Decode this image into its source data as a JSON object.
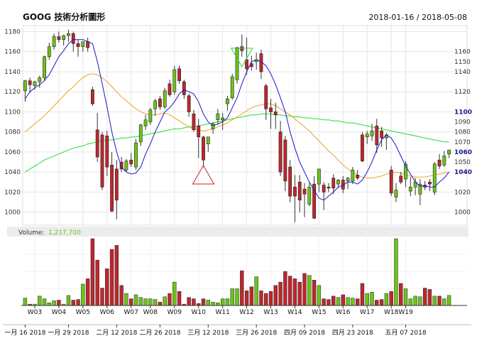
{
  "chart_data": {
    "type": "candlestick",
    "title": "GOOG 技術分析圖形",
    "date_range": "2018-01-16 / 2018-05-08",
    "y_ticks_left": [
      1000,
      1020,
      1040,
      1060,
      1080,
      1100,
      1120,
      1140,
      1160,
      1180
    ],
    "ylim": [
      987,
      1186
    ],
    "y_ticks_right": [
      {
        "label": "1160",
        "v": 1160,
        "bold": false
      },
      {
        "label": "1150",
        "v": 1150,
        "bold": false
      },
      {
        "label": "1140",
        "v": 1140,
        "bold": false
      },
      {
        "label": "1120",
        "v": 1120,
        "bold": false
      },
      {
        "label": "1100",
        "v": 1100,
        "bold": true
      },
      {
        "label": "1090",
        "v": 1090,
        "bold": false
      },
      {
        "label": "1080",
        "v": 1080,
        "bold": false
      },
      {
        "label": "1070",
        "v": 1070,
        "bold": false
      },
      {
        "label": "1060",
        "v": 1060,
        "bold": true
      },
      {
        "label": "1050",
        "v": 1050,
        "bold": false
      },
      {
        "label": "1040",
        "v": 1040,
        "bold": true
      },
      {
        "label": "1020",
        "v": 1020,
        "bold": false
      },
      {
        "label": "1000",
        "v": 1000,
        "bold": false
      }
    ],
    "colors": {
      "up": "#6cc417",
      "down": "#c0262d",
      "ma5": "#1a16c8",
      "ma20": "#f0a020",
      "ma60": "#22dd33",
      "grid": "#e6e6e6",
      "volume_label": "#6cc417"
    },
    "candles": [
      {
        "o": 1121,
        "h": 1132,
        "l": 1110,
        "c": 1131
      },
      {
        "o": 1131,
        "h": 1134,
        "l": 1119,
        "c": 1127
      },
      {
        "o": 1126,
        "h": 1131,
        "l": 1122,
        "c": 1130
      },
      {
        "o": 1130,
        "h": 1136,
        "l": 1124,
        "c": 1134
      },
      {
        "o": 1134,
        "h": 1156,
        "l": 1131,
        "c": 1155
      },
      {
        "o": 1155,
        "h": 1169,
        "l": 1152,
        "c": 1165
      },
      {
        "o": 1165,
        "h": 1178,
        "l": 1162,
        "c": 1175
      },
      {
        "o": 1175,
        "h": 1180,
        "l": 1169,
        "c": 1172
      },
      {
        "o": 1172,
        "h": 1177,
        "l": 1166,
        "c": 1176
      },
      {
        "o": 1176,
        "h": 1182,
        "l": 1170,
        "c": 1178
      },
      {
        "o": 1178,
        "h": 1180,
        "l": 1160,
        "c": 1168
      },
      {
        "o": 1168,
        "h": 1172,
        "l": 1155,
        "c": 1165
      },
      {
        "o": 1165,
        "h": 1170,
        "l": 1160,
        "c": 1170
      },
      {
        "o": 1170,
        "h": 1174,
        "l": 1160,
        "c": 1164
      },
      {
        "o": 1122,
        "h": 1125,
        "l": 1106,
        "c": 1108
      },
      {
        "o": 1082,
        "h": 1099,
        "l": 1050,
        "c": 1055
      },
      {
        "o": 1077,
        "h": 1080,
        "l": 1022,
        "c": 1025
      },
      {
        "o": 1076,
        "h": 1081,
        "l": 1036,
        "c": 1045
      },
      {
        "o": 1047,
        "h": 1060,
        "l": 1000,
        "c": 1001
      },
      {
        "o": 1043,
        "h": 1052,
        "l": 993,
        "c": 1012
      },
      {
        "o": 1050,
        "h": 1055,
        "l": 1040,
        "c": 1043
      },
      {
        "o": 1042,
        "h": 1053,
        "l": 1040,
        "c": 1051
      },
      {
        "o": 1052,
        "h": 1059,
        "l": 1045,
        "c": 1048
      },
      {
        "o": 1045,
        "h": 1073,
        "l": 1042,
        "c": 1069
      },
      {
        "o": 1070,
        "h": 1088,
        "l": 1066,
        "c": 1087
      },
      {
        "o": 1086,
        "h": 1097,
        "l": 1082,
        "c": 1092
      },
      {
        "o": 1090,
        "h": 1104,
        "l": 1087,
        "c": 1102
      },
      {
        "o": 1103,
        "h": 1113,
        "l": 1096,
        "c": 1111
      },
      {
        "o": 1113,
        "h": 1116,
        "l": 1102,
        "c": 1105
      },
      {
        "o": 1105,
        "h": 1124,
        "l": 1103,
        "c": 1121
      },
      {
        "o": 1128,
        "h": 1132,
        "l": 1115,
        "c": 1117
      },
      {
        "o": 1120,
        "h": 1146,
        "l": 1117,
        "c": 1142
      },
      {
        "o": 1143,
        "h": 1146,
        "l": 1128,
        "c": 1131
      },
      {
        "o": 1130,
        "h": 1132,
        "l": 1113,
        "c": 1117
      },
      {
        "o": 1116,
        "h": 1118,
        "l": 1095,
        "c": 1100
      },
      {
        "o": 1098,
        "h": 1102,
        "l": 1080,
        "c": 1082
      },
      {
        "o": 1086,
        "h": 1093,
        "l": 1054,
        "c": 1075
      },
      {
        "o": 1075,
        "h": 1076,
        "l": 1045,
        "c": 1052
      },
      {
        "o": 1068,
        "h": 1075,
        "l": 1060,
        "c": 1075
      },
      {
        "o": 1083,
        "h": 1090,
        "l": 1078,
        "c": 1088
      },
      {
        "o": 1092,
        "h": 1103,
        "l": 1087,
        "c": 1098
      },
      {
        "o": 1092,
        "h": 1099,
        "l": 1082,
        "c": 1094
      },
      {
        "o": 1108,
        "h": 1116,
        "l": 1101,
        "c": 1113
      },
      {
        "o": 1114,
        "h": 1138,
        "l": 1112,
        "c": 1135
      },
      {
        "o": 1132,
        "h": 1165,
        "l": 1128,
        "c": 1164
      },
      {
        "o": 1165,
        "h": 1177,
        "l": 1155,
        "c": 1161
      },
      {
        "o": 1152,
        "h": 1174,
        "l": 1137,
        "c": 1143
      },
      {
        "o": 1148,
        "h": 1156,
        "l": 1141,
        "c": 1145
      },
      {
        "o": 1150,
        "h": 1159,
        "l": 1142,
        "c": 1152
      },
      {
        "o": 1158,
        "h": 1162,
        "l": 1133,
        "c": 1140
      },
      {
        "o": 1126,
        "h": 1128,
        "l": 1092,
        "c": 1103
      },
      {
        "o": 1104,
        "h": 1113,
        "l": 1083,
        "c": 1100
      },
      {
        "o": 1100,
        "h": 1109,
        "l": 1083,
        "c": 1097
      },
      {
        "o": 1080,
        "h": 1091,
        "l": 1036,
        "c": 1040
      },
      {
        "o": 1072,
        "h": 1076,
        "l": 1021,
        "c": 1031
      },
      {
        "o": 1045,
        "h": 1052,
        "l": 1010,
        "c": 1016
      },
      {
        "o": 1025,
        "h": 1037,
        "l": 990,
        "c": 1016
      },
      {
        "o": 1030,
        "h": 1037,
        "l": 1000,
        "c": 1012
      },
      {
        "o": 1023,
        "h": 1029,
        "l": 995,
        "c": 1018
      },
      {
        "o": 1008,
        "h": 1029,
        "l": 1006,
        "c": 1025
      },
      {
        "o": 1028,
        "h": 1036,
        "l": 993,
        "c": 994
      },
      {
        "o": 1028,
        "h": 1043,
        "l": 1020,
        "c": 1043
      },
      {
        "o": 1027,
        "h": 1030,
        "l": 1002,
        "c": 1020
      },
      {
        "o": 1025,
        "h": 1029,
        "l": 1020,
        "c": 1024
      },
      {
        "o": 1034,
        "h": 1038,
        "l": 1018,
        "c": 1024
      },
      {
        "o": 1028,
        "h": 1033,
        "l": 1024,
        "c": 1032
      },
      {
        "o": 1032,
        "h": 1036,
        "l": 1019,
        "c": 1023
      },
      {
        "o": 1031,
        "h": 1035,
        "l": 1023,
        "c": 1034
      },
      {
        "o": 1031,
        "h": 1045,
        "l": 1028,
        "c": 1042
      },
      {
        "o": 1037,
        "h": 1042,
        "l": 1032,
        "c": 1034
      },
      {
        "o": 1077,
        "h": 1080,
        "l": 1050,
        "c": 1051
      },
      {
        "o": 1075,
        "h": 1081,
        "l": 1068,
        "c": 1078
      },
      {
        "o": 1076,
        "h": 1088,
        "l": 1071,
        "c": 1081
      },
      {
        "o": 1086,
        "h": 1093,
        "l": 1059,
        "c": 1067
      },
      {
        "o": 1081,
        "h": 1085,
        "l": 1065,
        "c": 1074
      },
      {
        "o": 1074,
        "h": 1079,
        "l": 1062,
        "c": 1077
      },
      {
        "o": 1042,
        "h": 1046,
        "l": 1016,
        "c": 1019
      },
      {
        "o": 1015,
        "h": 1029,
        "l": 1010,
        "c": 1022
      },
      {
        "o": 1036,
        "h": 1040,
        "l": 1028,
        "c": 1030
      },
      {
        "o": 1033,
        "h": 1051,
        "l": 1025,
        "c": 1048
      },
      {
        "o": 1021,
        "h": 1035,
        "l": 1016,
        "c": 1025
      },
      {
        "o": 1025,
        "h": 1034,
        "l": 1017,
        "c": 1030
      },
      {
        "o": 1018,
        "h": 1033,
        "l": 1007,
        "c": 1028
      },
      {
        "o": 1027,
        "h": 1031,
        "l": 1022,
        "c": 1025
      },
      {
        "o": 1030,
        "h": 1033,
        "l": 1021,
        "c": 1028
      },
      {
        "o": 1020,
        "h": 1050,
        "l": 1017,
        "c": 1048
      },
      {
        "o": 1052,
        "h": 1058,
        "l": 1043,
        "c": 1046
      },
      {
        "o": 1047,
        "h": 1061,
        "l": 1045,
        "c": 1056
      },
      {
        "o": 1058,
        "h": 1062,
        "l": 1054,
        "c": 1062
      }
    ],
    "ma5": [
      1113,
      1120,
      1124,
      1127,
      1131,
      1137,
      1146,
      1155,
      1161,
      1168,
      1172,
      1172,
      1172,
      1170,
      1168,
      1150,
      1128,
      1105,
      1080,
      1060,
      1045,
      1040,
      1038,
      1039,
      1045,
      1058,
      1068,
      1080,
      1090,
      1100,
      1104,
      1110,
      1118,
      1122,
      1120,
      1118,
      1110,
      1098,
      1090,
      1086,
      1088,
      1090,
      1094,
      1104,
      1114,
      1128,
      1140,
      1150,
      1152,
      1150,
      1146,
      1138,
      1127,
      1114,
      1100,
      1080,
      1064,
      1050,
      1040,
      1030,
      1022,
      1014,
      1012,
      1016,
      1020,
      1025,
      1027,
      1030,
      1030,
      1028,
      1032,
      1040,
      1050,
      1062,
      1072,
      1077,
      1074,
      1066,
      1056,
      1046,
      1038,
      1030,
      1026,
      1026,
      1025,
      1025,
      1030,
      1034,
      1040
    ],
    "ma20": [
      1080,
      1084,
      1088,
      1092,
      1096,
      1101,
      1106,
      1111,
      1116,
      1121,
      1125,
      1130,
      1134,
      1137,
      1138,
      1137,
      1134,
      1130,
      1125,
      1120,
      1115,
      1111,
      1107,
      1103,
      1100,
      1098,
      1097,
      1097,
      1098,
      1099,
      1097,
      1094,
      1091,
      1088,
      1085,
      1083,
      1082,
      1081,
      1082,
      1083,
      1085,
      1087,
      1089,
      1092,
      1095,
      1098,
      1101,
      1104,
      1106,
      1107,
      1108,
      1108,
      1106,
      1103,
      1100,
      1097,
      1093,
      1089,
      1085,
      1081,
      1076,
      1071,
      1066,
      1061,
      1057,
      1052,
      1047,
      1043,
      1040,
      1037,
      1035,
      1034,
      1034,
      1035,
      1036,
      1038,
      1039,
      1040,
      1039,
      1037,
      1036,
      1035,
      1035,
      1035,
      1036,
      1037,
      1038,
      1039,
      1040
    ],
    "ma60": [
      1040,
      1043,
      1046,
      1049,
      1052,
      1054,
      1056,
      1058,
      1060,
      1062,
      1064,
      1065,
      1066,
      1068,
      1069,
      1070,
      1071,
      1072,
      1072,
      1073,
      1074,
      1074,
      1075,
      1075,
      1076,
      1077,
      1078,
      1079,
      1080,
      1081,
      1082,
      1083,
      1083,
      1084,
      1085,
      1085,
      1086,
      1087,
      1088,
      1089,
      1090,
      1091,
      1092,
      1093,
      1094,
      1095,
      1096,
      1097,
      1097,
      1098,
      1098,
      1098,
      1097,
      1097,
      1096,
      1096,
      1095,
      1095,
      1094,
      1094,
      1093,
      1093,
      1092,
      1092,
      1091,
      1091,
      1090,
      1089,
      1089,
      1088,
      1087,
      1086,
      1085,
      1084,
      1083,
      1082,
      1081,
      1080,
      1079,
      1078,
      1077,
      1076,
      1075,
      1074,
      1073,
      1072,
      1071,
      1070,
      1070
    ],
    "volume_label": "Volume:",
    "volume_value": "1,217,700",
    "volume": [
      0.11,
      0.02,
      0.02,
      0.14,
      0.1,
      0.04,
      0.07,
      0.08,
      0.02,
      0.15,
      0.08,
      0.09,
      0.32,
      0.4,
      1.0,
      0.68,
      0.26,
      0.55,
      0.84,
      0.9,
      0.3,
      0.18,
      0.1,
      0.16,
      0.12,
      0.1,
      0.1,
      0.09,
      0.05,
      0.13,
      0.18,
      0.35,
      0.21,
      0.02,
      0.12,
      0.1,
      0.03,
      0.1,
      0.08,
      0.05,
      0.04,
      0.1,
      0.1,
      0.25,
      0.25,
      0.52,
      0.22,
      0.28,
      0.43,
      0.22,
      0.18,
      0.21,
      0.3,
      0.35,
      0.51,
      0.44,
      0.4,
      0.35,
      0.48,
      0.45,
      0.38,
      0.3,
      0.1,
      0.09,
      0.14,
      0.12,
      0.16,
      0.12,
      0.11,
      0.1,
      0.33,
      0.18,
      0.2,
      0.08,
      0.09,
      0.18,
      0.21,
      1.0,
      0.33,
      0.25,
      0.1,
      0.14,
      0.13,
      0.26,
      0.24,
      0.14,
      0.14,
      0.1,
      0.15
    ],
    "week_labels": [
      {
        "label": "W03",
        "i": 2
      },
      {
        "label": "W04",
        "i": 7
      },
      {
        "label": "W05",
        "i": 12
      },
      {
        "label": "W06",
        "i": 17
      },
      {
        "label": "W07",
        "i": 22
      },
      {
        "label": "W08",
        "i": 26
      },
      {
        "label": "W09",
        "i": 31
      },
      {
        "label": "W10",
        "i": 36
      },
      {
        "label": "W11",
        "i": 41
      },
      {
        "label": "W12",
        "i": 46
      },
      {
        "label": "W13",
        "i": 51
      },
      {
        "label": "W14",
        "i": 56
      },
      {
        "label": "W15",
        "i": 61
      },
      {
        "label": "W16",
        "i": 66
      },
      {
        "label": "W17",
        "i": 71
      },
      {
        "label": "W18",
        "i": 76
      },
      {
        "label": "W19",
        "i": 79
      }
    ],
    "date_labels": [
      {
        "label": "一月 16 2018",
        "i": 0
      },
      {
        "label": "一月 29 2018",
        "i": 9
      },
      {
        "label": "二月 12 2018",
        "i": 19
      },
      {
        "label": "二月 26 2018",
        "i": 28
      },
      {
        "label": "三月 12 2018",
        "i": 38
      },
      {
        "label": "三月 26 2018",
        "i": 48
      },
      {
        "label": "四月 09 2018",
        "i": 58
      },
      {
        "label": "四月 23 2018",
        "i": 68
      },
      {
        "label": "五月 07 2018",
        "i": 79
      }
    ],
    "markers": [
      {
        "type": "triangle-down",
        "i": 45,
        "v": 1162,
        "color": "#22dd33"
      },
      {
        "type": "triangle-up",
        "i": 37,
        "v": 1038,
        "color": "#d02020"
      }
    ]
  }
}
